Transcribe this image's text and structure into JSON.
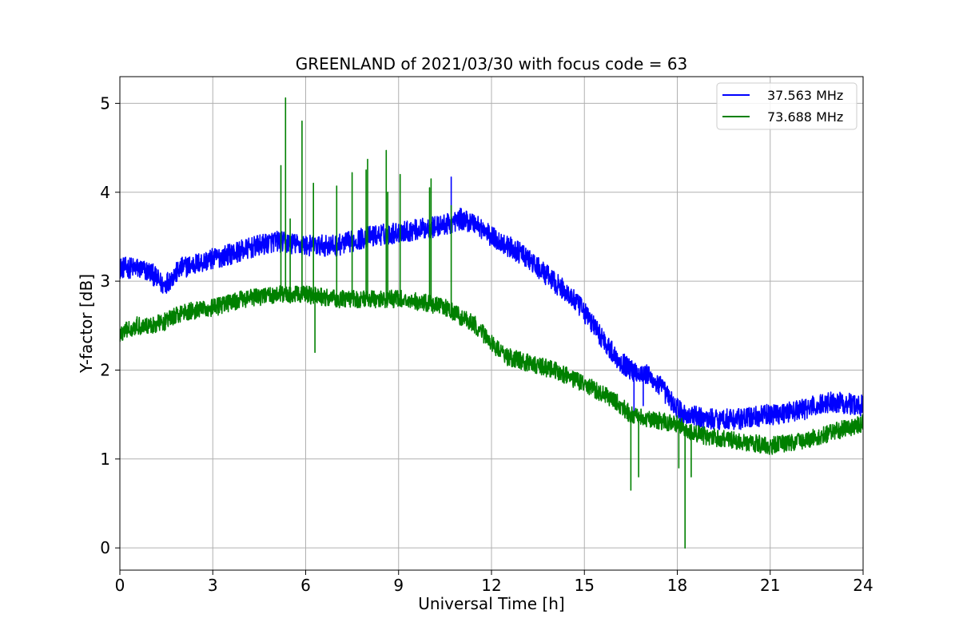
{
  "chart_data": {
    "type": "line",
    "title": "GREENLAND of 2021/03/30 with focus code = 63",
    "xlabel": "Universal Time [h]",
    "ylabel": "Y-factor [dB]",
    "xlim": [
      0,
      24
    ],
    "ylim": [
      -0.25,
      5.3
    ],
    "xticks": [
      0,
      3,
      6,
      9,
      12,
      15,
      18,
      21,
      24
    ],
    "yticks": [
      0,
      1,
      2,
      3,
      4,
      5
    ],
    "grid": true,
    "legend_position": "top-right",
    "series": [
      {
        "name": "37.563 MHz",
        "color": "#0000ff",
        "noise": 0.12,
        "x": [
          0,
          0.5,
          1.0,
          1.4,
          2,
          3,
          4,
          5,
          6,
          7,
          8,
          9,
          10,
          10.7,
          11,
          11.5,
          12,
          12.5,
          13,
          14,
          14.5,
          15,
          15.5,
          16,
          16.5,
          17,
          17.5,
          17.8,
          18.2,
          18.5,
          19,
          20,
          21,
          22,
          23,
          24
        ],
        "y": [
          3.15,
          3.15,
          3.1,
          2.95,
          3.15,
          3.25,
          3.35,
          3.45,
          3.4,
          3.4,
          3.5,
          3.55,
          3.6,
          3.65,
          3.7,
          3.65,
          3.5,
          3.4,
          3.3,
          3.0,
          2.85,
          2.65,
          2.4,
          2.15,
          2.0,
          1.95,
          1.8,
          1.65,
          1.5,
          1.48,
          1.45,
          1.45,
          1.5,
          1.55,
          1.65,
          1.6
        ],
        "spikes": [
          {
            "x": 10.7,
            "y": 4.17
          },
          {
            "x": 16.6,
            "y": 1.5
          },
          {
            "x": 16.9,
            "y": 1.6
          },
          {
            "x": 18.1,
            "y": 1.3
          }
        ]
      },
      {
        "name": "73.688 MHz",
        "color": "#008000",
        "noise": 0.1,
        "x": [
          0,
          0.5,
          1.0,
          1.5,
          2,
          3,
          4,
          5,
          6,
          7,
          8,
          9,
          10,
          10.5,
          11,
          11.5,
          12,
          12.5,
          13,
          14,
          15,
          16,
          16.5,
          17,
          18,
          18.5,
          19,
          20,
          21,
          22,
          23,
          24
        ],
        "y": [
          2.4,
          2.5,
          2.5,
          2.55,
          2.65,
          2.7,
          2.8,
          2.85,
          2.85,
          2.8,
          2.8,
          2.8,
          2.75,
          2.7,
          2.6,
          2.5,
          2.3,
          2.15,
          2.1,
          2.0,
          1.85,
          1.65,
          1.5,
          1.45,
          1.4,
          1.3,
          1.25,
          1.2,
          1.15,
          1.2,
          1.3,
          1.4
        ],
        "spikes": [
          {
            "x": 5.2,
            "y": 4.3
          },
          {
            "x": 5.35,
            "y": 5.06
          },
          {
            "x": 5.5,
            "y": 3.7
          },
          {
            "x": 5.88,
            "y": 4.8
          },
          {
            "x": 6.25,
            "y": 4.1
          },
          {
            "x": 6.3,
            "y": 2.2
          },
          {
            "x": 7.0,
            "y": 4.07
          },
          {
            "x": 7.5,
            "y": 4.22
          },
          {
            "x": 7.95,
            "y": 4.25
          },
          {
            "x": 8.0,
            "y": 4.37
          },
          {
            "x": 8.6,
            "y": 4.47
          },
          {
            "x": 8.65,
            "y": 4.0
          },
          {
            "x": 9.05,
            "y": 4.2
          },
          {
            "x": 10.0,
            "y": 4.05
          },
          {
            "x": 10.05,
            "y": 4.15
          },
          {
            "x": 10.7,
            "y": 3.85
          },
          {
            "x": 16.5,
            "y": 0.65
          },
          {
            "x": 16.75,
            "y": 0.8
          },
          {
            "x": 18.05,
            "y": 0.9
          },
          {
            "x": 18.25,
            "y": 0.0
          },
          {
            "x": 18.45,
            "y": 0.8
          }
        ]
      }
    ]
  }
}
